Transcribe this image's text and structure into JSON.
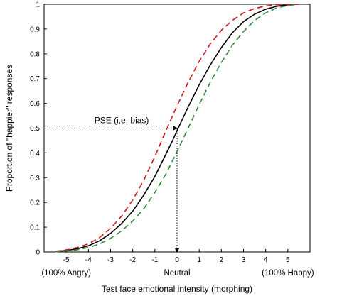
{
  "chart_data": {
    "type": "line",
    "xlabel": "Test face emotional intensity (morphing)",
    "ylabel": "Proportion of \"happier\" responses",
    "xlim": [
      -6,
      6
    ],
    "ylim": [
      0,
      1
    ],
    "xticks": [
      -5,
      -4,
      -3,
      -2,
      -1,
      0,
      1,
      2,
      3,
      4,
      5
    ],
    "yticks": [
      0,
      0.1,
      0.2,
      0.3,
      0.4,
      0.5,
      0.6,
      0.7,
      0.8,
      0.9,
      1
    ],
    "x_anchor_labels": [
      {
        "x": -5,
        "text": "(100% Angry)"
      },
      {
        "x": 0,
        "text": "Neutral"
      },
      {
        "x": 5,
        "text": "(100% Happy)"
      }
    ],
    "grid": false,
    "series": [
      {
        "color": "#000000",
        "dash": "solid",
        "x": [
          -5.5,
          -5,
          -4.5,
          -4,
          -3.5,
          -3,
          -2.5,
          -2,
          -1.5,
          -1,
          -0.5,
          -0.2,
          0,
          0.5,
          1,
          1.5,
          2,
          2.5,
          3,
          3.5,
          4,
          4.5,
          5,
          5.5
        ],
        "y": [
          0.002,
          0.006,
          0.013,
          0.025,
          0.045,
          0.075,
          0.115,
          0.165,
          0.23,
          0.305,
          0.395,
          0.45,
          0.49,
          0.585,
          0.675,
          0.755,
          0.825,
          0.885,
          0.93,
          0.96,
          0.98,
          0.992,
          0.998,
          1.0
        ]
      },
      {
        "color": "#d0191d",
        "dash": "dashed",
        "x": [
          -5.5,
          -5,
          -4.5,
          -4,
          -3.5,
          -3,
          -2.5,
          -2,
          -1.5,
          -1,
          -0.5,
          0,
          0.5,
          1,
          1.5,
          2,
          2.5,
          3,
          3.5,
          4,
          4.5,
          5,
          5.5
        ],
        "y": [
          0.003,
          0.008,
          0.018,
          0.033,
          0.058,
          0.095,
          0.145,
          0.21,
          0.29,
          0.385,
          0.49,
          0.59,
          0.685,
          0.77,
          0.84,
          0.895,
          0.935,
          0.965,
          0.983,
          0.993,
          0.998,
          1.0,
          1.0
        ]
      },
      {
        "color": "#2e8b3a",
        "dash": "dashed",
        "x": [
          -5.5,
          -5,
          -4.5,
          -4,
          -3.5,
          -3,
          -2.5,
          -2,
          -1.5,
          -1,
          -0.5,
          0,
          0.5,
          1,
          1.5,
          2,
          2.5,
          3,
          3.5,
          4,
          4.5,
          5,
          5.5
        ],
        "y": [
          0.001,
          0.004,
          0.009,
          0.018,
          0.032,
          0.055,
          0.085,
          0.125,
          0.175,
          0.24,
          0.315,
          0.405,
          0.5,
          0.595,
          0.685,
          0.765,
          0.835,
          0.89,
          0.935,
          0.965,
          0.985,
          0.995,
          1.0
        ]
      }
    ],
    "annotations": [
      {
        "text": "PSE (i.e. bias)",
        "arrow_from": [
          -6,
          0.5
        ],
        "arrow_to": [
          0,
          0.5
        ]
      },
      {
        "arrow_from": [
          0,
          0.5
        ],
        "arrow_to": [
          0,
          0
        ]
      }
    ]
  }
}
